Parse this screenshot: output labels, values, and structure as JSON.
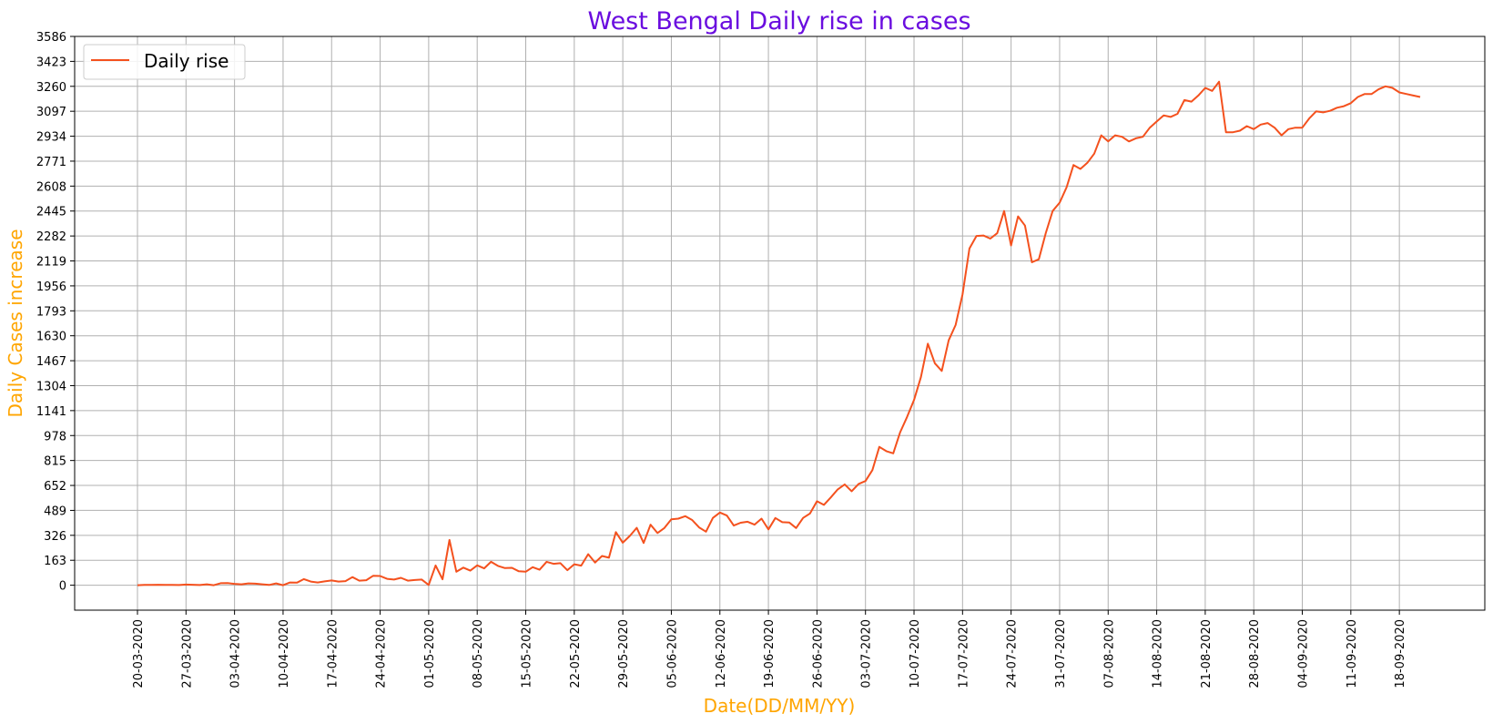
{
  "chart_data": {
    "type": "line",
    "title": "West Bengal Daily rise in cases",
    "xlabel": "Date(DD/MM/YY)",
    "ylabel": "Daily Cases increase",
    "legend": {
      "entries": [
        "Daily rise"
      ],
      "placement": "top-left"
    },
    "grid": true,
    "x_start": "20-03-2020",
    "x_tick_labels": [
      "20-03-2020",
      "27-03-2020",
      "03-04-2020",
      "10-04-2020",
      "17-04-2020",
      "24-04-2020",
      "01-05-2020",
      "08-05-2020",
      "15-05-2020",
      "22-05-2020",
      "29-05-2020",
      "05-06-2020",
      "12-06-2020",
      "19-06-2020",
      "26-06-2020",
      "03-07-2020",
      "10-07-2020",
      "17-07-2020",
      "24-07-2020",
      "31-07-2020",
      "07-08-2020",
      "14-08-2020",
      "21-08-2020",
      "28-08-2020",
      "04-09-2020",
      "11-09-2020",
      "18-09-2020"
    ],
    "y_ticks": [
      0,
      163,
      326,
      489,
      652,
      815,
      978,
      1141,
      1304,
      1467,
      1630,
      1793,
      1956,
      2119,
      2282,
      2445,
      2608,
      2771,
      2934,
      3097,
      3260,
      3423,
      3586
    ],
    "ylim": [
      -163,
      3586
    ],
    "series": [
      {
        "name": "Daily rise",
        "color": "#f4511e",
        "values": [
          0,
          2,
          2,
          3,
          2,
          2,
          1,
          4,
          3,
          1,
          6,
          0,
          13,
          14,
          9,
          6,
          12,
          10,
          6,
          2,
          12,
          0,
          18,
          17,
          40,
          24,
          18,
          25,
          31,
          24,
          27,
          53,
          30,
          33,
          62,
          60,
          42,
          37,
          48,
          30,
          34,
          37,
          2,
          129,
          39,
          296,
          88,
          115,
          95,
          130,
          110,
          153,
          126,
          112,
          114,
          91,
          88,
          118,
          101,
          153,
          140,
          144,
          98,
          137,
          128,
          203,
          148,
          191,
          180,
          347,
          278,
          322,
          375,
          276,
          396,
          341,
          374,
          430,
          435,
          451,
          426,
          378,
          350,
          440,
          475,
          455,
          390,
          408,
          415,
          396,
          435,
          365,
          439,
          412,
          410,
          374,
          440,
          469,
          549,
          525,
          574,
          626,
          659,
          614,
          662,
          681,
          752,
          904,
          876,
          862,
          1000,
          1100,
          1210,
          1360,
          1578,
          1450,
          1400,
          1600,
          1700,
          1900,
          2200,
          2282,
          2285,
          2265,
          2300,
          2445,
          2220,
          2410,
          2350,
          2110,
          2130,
          2300,
          2445,
          2500,
          2600,
          2746,
          2720,
          2760,
          2820,
          2940,
          2900,
          2940,
          2930,
          2900,
          2920,
          2930,
          2990,
          3030,
          3070,
          3060,
          3080,
          3170,
          3160,
          3200,
          3250,
          3230,
          3290,
          2960,
          2960,
          2970,
          3000,
          2980,
          3010,
          3020,
          2990,
          2940,
          2980,
          2990,
          2990,
          3050,
          3097,
          3090,
          3100,
          3120,
          3130,
          3150,
          3190,
          3210,
          3210,
          3240,
          3260,
          3250,
          3220,
          3210,
          3200,
          3190
        ]
      }
    ]
  }
}
